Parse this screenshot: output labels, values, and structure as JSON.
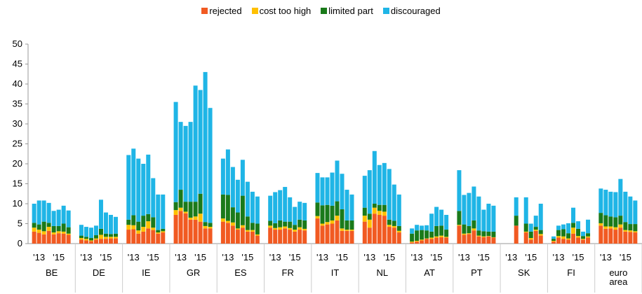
{
  "chart_data": {
    "type": "bar",
    "stacked": true,
    "ylim": [
      0,
      50
    ],
    "yticks": [
      0,
      5,
      10,
      15,
      20,
      25,
      30,
      35,
      40,
      45,
      50
    ],
    "grid": false,
    "legend": "top",
    "groups": [
      {
        "name": "BE",
        "categories": [
          null,
          "'13",
          null,
          null,
          null,
          "'15",
          null,
          null
        ]
      },
      {
        "name": "DE",
        "categories": [
          null,
          "'13",
          null,
          null,
          null,
          "'15",
          null,
          null
        ]
      },
      {
        "name": "IE",
        "categories": [
          null,
          "'13",
          null,
          null,
          null,
          "'15",
          null,
          null
        ]
      },
      {
        "name": "GR",
        "categories": [
          null,
          "'13",
          null,
          null,
          null,
          "'15",
          null,
          null
        ]
      },
      {
        "name": "ES",
        "categories": [
          null,
          "'13",
          null,
          null,
          null,
          "'15",
          null,
          null
        ]
      },
      {
        "name": "FR",
        "categories": [
          null,
          "'13",
          null,
          null,
          null,
          "'15",
          null,
          null
        ]
      },
      {
        "name": "IT",
        "categories": [
          null,
          "'13",
          null,
          null,
          null,
          "'15",
          null,
          null
        ]
      },
      {
        "name": "NL",
        "categories": [
          null,
          "'13",
          null,
          null,
          null,
          "'15",
          null,
          null
        ]
      },
      {
        "name": "AT",
        "categories": [
          null,
          "'13",
          null,
          null,
          null,
          "'15",
          null,
          null
        ]
      },
      {
        "name": "PT",
        "categories": [
          null,
          "'13",
          null,
          null,
          null,
          "'15",
          null,
          null
        ]
      },
      {
        "name": "SK",
        "categories": [
          null,
          "'13",
          null,
          null,
          null,
          "'15",
          null,
          null
        ]
      },
      {
        "name": "FI",
        "categories": [
          null,
          "'13",
          null,
          null,
          null,
          "'15",
          null,
          null
        ]
      },
      {
        "name": "euro area",
        "categories": [
          null,
          "'13",
          null,
          null,
          null,
          "'15",
          null,
          null
        ]
      }
    ],
    "series": [
      {
        "name": "rejected",
        "color": "#f15a22",
        "values": [
          3,
          2.7,
          2.3,
          3.2,
          2.3,
          2.6,
          2.5,
          2.2,
          1,
          0.8,
          0.6,
          1,
          1.2,
          1.2,
          1.3,
          1.3,
          3.5,
          3.6,
          2.5,
          3.0,
          3.8,
          3.4,
          2.5,
          2.8,
          7.2,
          8.2,
          7.6,
          6,
          6,
          5.5,
          3.8,
          3.8,
          5.5,
          5.2,
          4.5,
          3.5,
          4,
          3,
          3,
          2,
          4,
          3.5,
          3.5,
          3.8,
          3.5,
          3,
          3.5,
          3.3,
          6.3,
          4.5,
          4.8,
          5,
          5.8,
          3.2,
          3.2,
          3.2,
          5.5,
          4,
          7.5,
          7.2,
          7,
          4.2,
          4,
          2.8,
          0.3,
          0.5,
          0.8,
          1.2,
          1.2,
          1.5,
          1.6,
          1.5,
          4.5,
          2.2,
          2.4,
          3.3,
          1.8,
          1.6,
          1.8,
          1.5,
          null,
          null,
          4.5,
          null,
          2.8,
          1,
          3.2,
          2,
          0.5,
          1.5,
          1.2,
          1,
          2.5,
          1.5,
          1,
          1.5,
          4.5,
          3.7,
          3.8,
          3.5,
          4,
          3,
          2.9,
          2.8
        ]
      },
      {
        "name": "cost too high",
        "color": "#ffc000",
        "values": [
          1,
          0.8,
          0.8,
          1.0,
          0.5,
          0.5,
          0.5,
          0.3,
          0.4,
          0.4,
          0.2,
          0.3,
          1,
          0.5,
          0.4,
          0.4,
          1.2,
          1.0,
          0.8,
          1.2,
          1.8,
          0.6,
          0.3,
          0.3,
          1.2,
          0.8,
          0.4,
          0.5,
          0.8,
          2,
          0.6,
          0.4,
          0.8,
          0.5,
          0.8,
          0.3,
          0.6,
          0.4,
          0.4,
          0.3,
          0.5,
          0.4,
          0.6,
          0.5,
          0.4,
          0.5,
          0.6,
          0.4,
          0.6,
          0.5,
          0.6,
          0.8,
          1.2,
          0.6,
          0.3,
          0.3,
          1.5,
          2,
          1.5,
          1,
          1,
          0.5,
          0.4,
          0.4,
          0.2,
          0.2,
          0.2,
          0.1,
          0.3,
          0.3,
          0.4,
          0.2,
          0.2,
          0.3,
          0.2,
          0.5,
          0.2,
          0.2,
          0.1,
          0.1,
          null,
          null,
          0,
          null,
          0.2,
          0.4,
          0.3,
          0.4,
          0.2,
          0.4,
          0.6,
          0.3,
          1.5,
          0.4,
          0.2,
          0.3,
          0.6,
          0.6,
          0.5,
          0.6,
          0.8,
          0.4,
          0.4,
          0.3
        ]
      },
      {
        "name": "limited part",
        "color": "#1a7a1a",
        "values": [
          1.2,
          1.3,
          2.4,
          1.0,
          1.6,
          1.3,
          2,
          1.6,
          0.6,
          0.5,
          0.6,
          0.8,
          1.5,
          0.8,
          0.7,
          0.8,
          1.3,
          2.5,
          2.2,
          2.8,
          1.8,
          2.6,
          0.6,
          0.6,
          2,
          4.5,
          2.5,
          4,
          3.7,
          5,
          1,
          1,
          6,
          6.5,
          3.8,
          4,
          7.4,
          3.4,
          1.8,
          2.7,
          1.2,
          1.2,
          1.7,
          1.2,
          1.6,
          1.2,
          1.9,
          2.1,
          3.4,
          4.6,
          4.3,
          3.7,
          3.6,
          4.8,
          2.3,
          2.3,
          2,
          1.5,
          1,
          1.5,
          1.7,
          1.3,
          1.3,
          1.2,
          2,
          2.6,
          2.4,
          2,
          1.5,
          2.6,
          2.5,
          1.8,
          3.5,
          2.3,
          1.8,
          2,
          1.3,
          1.3,
          1.1,
          1.4,
          null,
          null,
          2.5,
          null,
          2,
          1.6,
          0.7,
          1,
          0.5,
          1.5,
          1.8,
          1.3,
          1.2,
          1.8,
          0.7,
          0.8,
          2.6,
          2.8,
          2.5,
          2.5,
          2.2,
          2,
          1.6,
          1.8
        ]
      },
      {
        "name": "discouraged",
        "color": "#1fb5e6",
        "values": [
          4.8,
          6.0,
          5.3,
          5.0,
          3.8,
          4.1,
          4.5,
          4.2,
          2.7,
          2.5,
          2.6,
          2.4,
          7.3,
          5.3,
          4.8,
          4.2,
          16.2,
          16.7,
          15.8,
          13,
          14.9,
          9.8,
          8.9,
          8.6,
          25.1,
          17,
          19,
          20,
          29.1,
          26,
          37.6,
          28.8,
          9,
          11.4,
          10.1,
          8.2,
          9,
          8.7,
          7.8,
          6.8,
          6.3,
          7.8,
          7.6,
          8.7,
          6.1,
          4.5,
          4.5,
          4.4,
          7.4,
          7,
          6.9,
          8.3,
          10.2,
          8.9,
          7.7,
          6.5,
          8,
          10.9,
          13.2,
          10,
          10.5,
          12.7,
          9.1,
          7.9,
          1.3,
          1.4,
          1.1,
          1.3,
          4.5,
          4.8,
          4,
          3.7,
          10.2,
          7.4,
          8.3,
          8.5,
          8.5,
          5.4,
          7,
          6.5,
          null,
          null,
          4.6,
          null,
          6.6,
          2,
          2.8,
          6.6,
          0.6,
          1.1,
          1.2,
          2.5,
          3.8,
          1.9,
          1.1,
          3.4,
          6.1,
          6.4,
          6.2,
          6.3,
          9.2,
          7.6,
          6.9,
          5.9
        ]
      }
    ]
  }
}
